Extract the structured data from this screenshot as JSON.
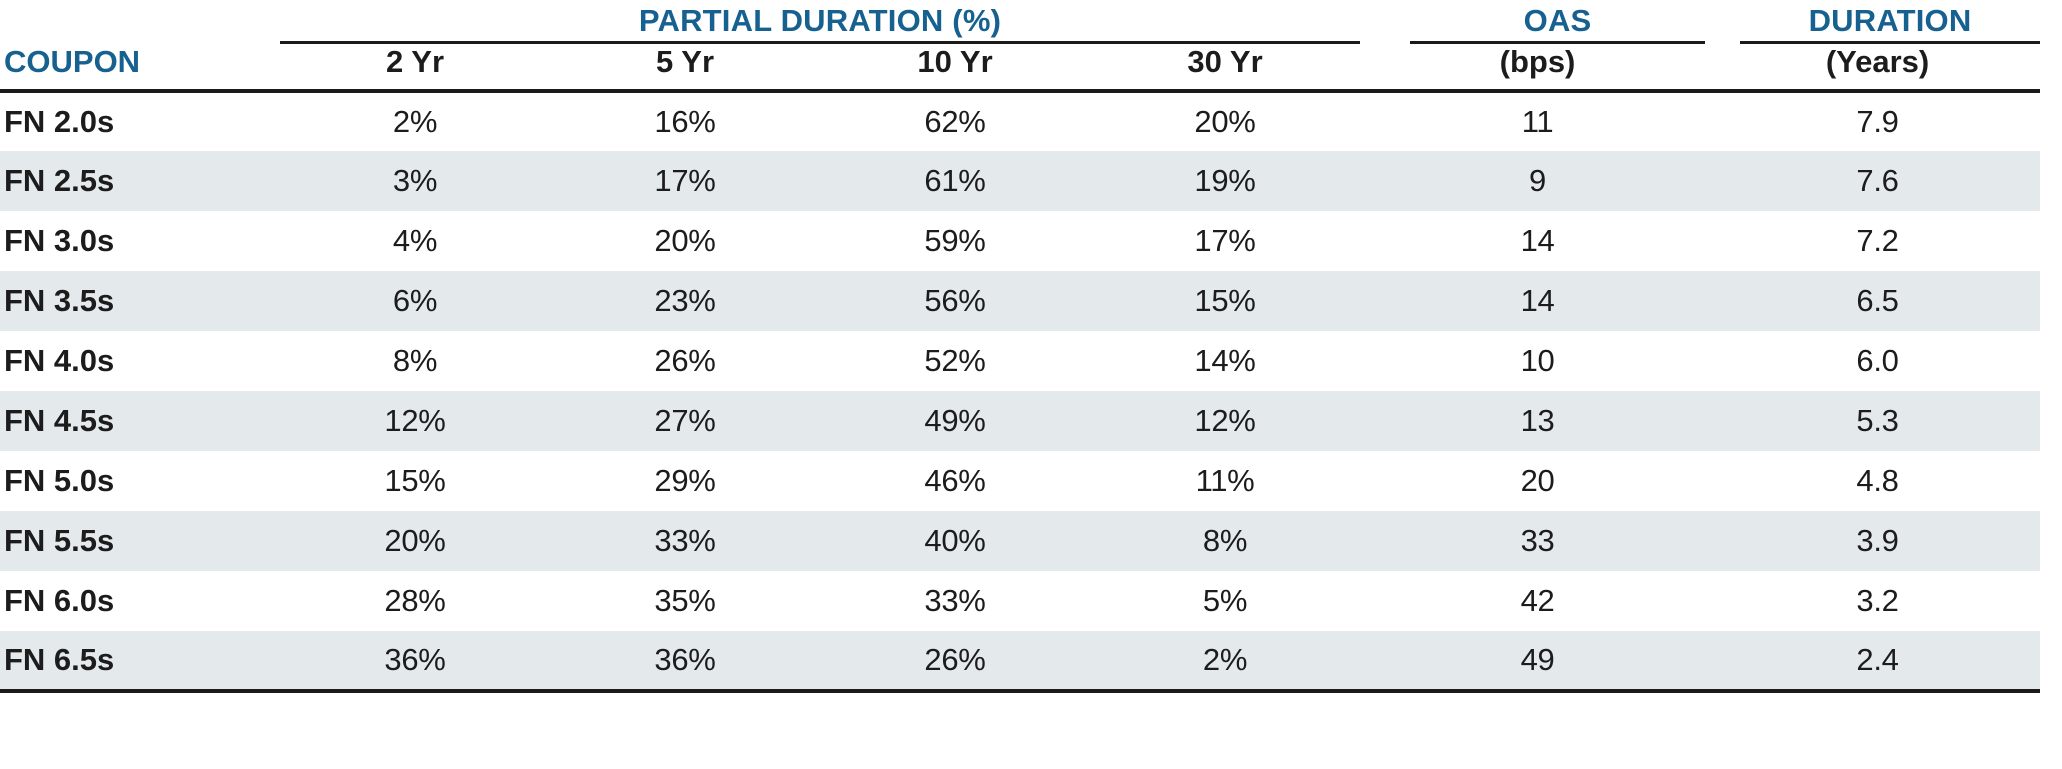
{
  "colors": {
    "header_blue": "#16618F",
    "alt_row_bg": "#E4E9EC",
    "rule_black": "#1A1A1A"
  },
  "header": {
    "group_partial_duration": "PARTIAL DURATION (%)",
    "group_oas": "OAS",
    "group_duration": "DURATION",
    "coupon": "COUPON",
    "col_2yr": "2 Yr",
    "col_5yr": "5 Yr",
    "col_10yr": "10 Yr",
    "col_30yr": "30 Yr",
    "oas_unit": "(bps)",
    "duration_unit": "(Years)"
  },
  "rows": [
    {
      "coupon": "FN 2.0s",
      "yr2": "2%",
      "yr5": "16%",
      "yr10": "62%",
      "yr30": "20%",
      "oas": "11",
      "duration": "7.9"
    },
    {
      "coupon": "FN 2.5s",
      "yr2": "3%",
      "yr5": "17%",
      "yr10": "61%",
      "yr30": "19%",
      "oas": "9",
      "duration": "7.6"
    },
    {
      "coupon": "FN 3.0s",
      "yr2": "4%",
      "yr5": "20%",
      "yr10": "59%",
      "yr30": "17%",
      "oas": "14",
      "duration": "7.2"
    },
    {
      "coupon": "FN 3.5s",
      "yr2": "6%",
      "yr5": "23%",
      "yr10": "56%",
      "yr30": "15%",
      "oas": "14",
      "duration": "6.5"
    },
    {
      "coupon": "FN 4.0s",
      "yr2": "8%",
      "yr5": "26%",
      "yr10": "52%",
      "yr30": "14%",
      "oas": "10",
      "duration": "6.0"
    },
    {
      "coupon": "FN 4.5s",
      "yr2": "12%",
      "yr5": "27%",
      "yr10": "49%",
      "yr30": "12%",
      "oas": "13",
      "duration": "5.3"
    },
    {
      "coupon": "FN 5.0s",
      "yr2": "15%",
      "yr5": "29%",
      "yr10": "46%",
      "yr30": "11%",
      "oas": "20",
      "duration": "4.8"
    },
    {
      "coupon": "FN 5.5s",
      "yr2": "20%",
      "yr5": "33%",
      "yr10": "40%",
      "yr30": "8%",
      "oas": "33",
      "duration": "3.9"
    },
    {
      "coupon": "FN 6.0s",
      "yr2": "28%",
      "yr5": "35%",
      "yr10": "33%",
      "yr30": "5%",
      "oas": "42",
      "duration": "3.2"
    },
    {
      "coupon": "FN 6.5s",
      "yr2": "36%",
      "yr5": "36%",
      "yr10": "26%",
      "yr30": "2%",
      "oas": "49",
      "duration": "2.4"
    }
  ],
  "chart_data": {
    "type": "table",
    "title": "",
    "column_groups": [
      {
        "label": "PARTIAL DURATION (%)",
        "spans": [
          "2 Yr",
          "5 Yr",
          "10 Yr",
          "30 Yr"
        ]
      },
      {
        "label": "OAS",
        "spans": [
          "(bps)"
        ]
      },
      {
        "label": "DURATION",
        "spans": [
          "(Years)"
        ]
      }
    ],
    "columns": [
      "COUPON",
      "2 Yr Partial Duration (%)",
      "5 Yr Partial Duration (%)",
      "10 Yr Partial Duration (%)",
      "30 Yr Partial Duration (%)",
      "OAS (bps)",
      "Duration (Years)"
    ],
    "rows": [
      [
        "FN 2.0s",
        2,
        16,
        62,
        20,
        11,
        7.9
      ],
      [
        "FN 2.5s",
        3,
        17,
        61,
        19,
        9,
        7.6
      ],
      [
        "FN 3.0s",
        4,
        20,
        59,
        17,
        14,
        7.2
      ],
      [
        "FN 3.5s",
        6,
        23,
        56,
        15,
        14,
        6.5
      ],
      [
        "FN 4.0s",
        8,
        26,
        52,
        14,
        10,
        6.0
      ],
      [
        "FN 4.5s",
        12,
        27,
        49,
        12,
        13,
        5.3
      ],
      [
        "FN 5.0s",
        15,
        29,
        46,
        11,
        20,
        4.8
      ],
      [
        "FN 5.5s",
        20,
        33,
        40,
        8,
        33,
        3.9
      ],
      [
        "FN 6.0s",
        28,
        35,
        33,
        5,
        42,
        3.2
      ],
      [
        "FN 6.5s",
        36,
        36,
        26,
        2,
        49,
        2.4
      ]
    ],
    "layout": {
      "alternating_row_shading": true,
      "row_label_column": "COUPON",
      "header_text_color": "#16618F"
    }
  }
}
